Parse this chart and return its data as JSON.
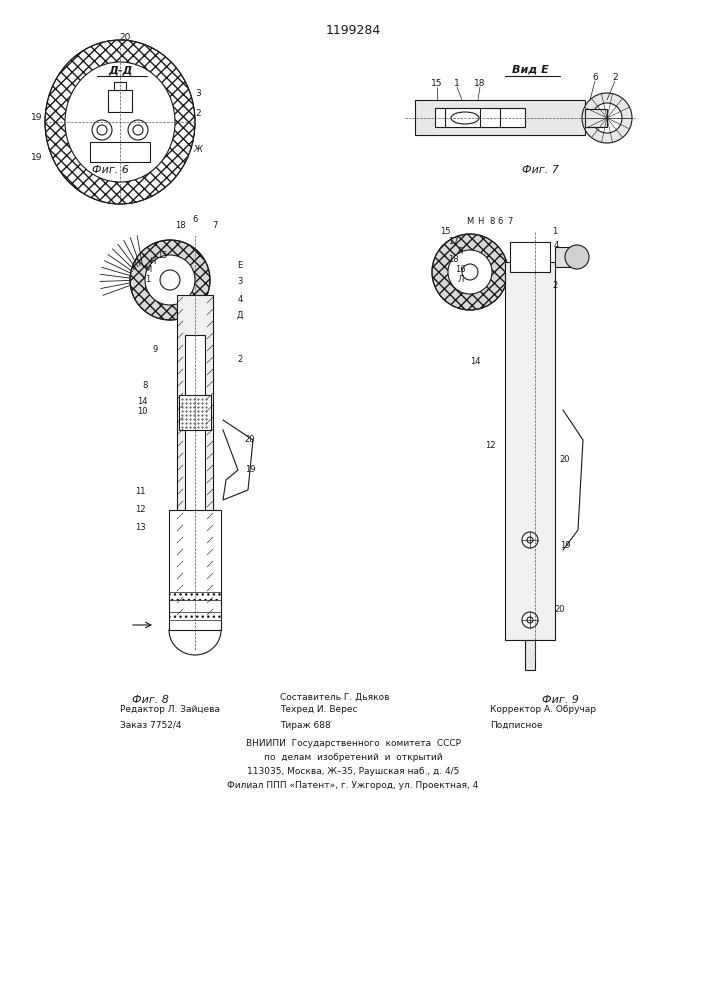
{
  "patent_number": "1199284",
  "bg_color": "#ffffff",
  "line_color": "#1a1a1a",
  "hatch_color": "#333333",
  "section_dd_label": "Д-Д",
  "view_e_label": "Вид Е",
  "fig6_label": "Фиг. 6",
  "fig7_label": "Фиг. 7",
  "fig8_label": "Фиг. 8",
  "fig9_label": "Фиг. 9",
  "footer_line1_left": "Редактор Л. Зайцева",
  "footer_line2_left": "Заказ 7752/4",
  "footer_line1_center": "Составитель Г. Дьяков",
  "footer_line2_center": "Техред И. Верес",
  "footer_line3_center": "Тираж 688",
  "footer_line1_right": "",
  "footer_line2_right": "Корректор А. Обручар",
  "footer_line3_right": "Подписное",
  "footer_vniipи": "ВНИИПИ  Государственного  комитета  СССР",
  "footer_po_delam": "по  делам  изобретений  и  открытий",
  "footer_address": "113035, Москва, Ж–35, Раушская наб., д. 4/5",
  "footer_filial": "Филиал ППП «Патент», г. Ужгород, ул. Проектная, 4"
}
